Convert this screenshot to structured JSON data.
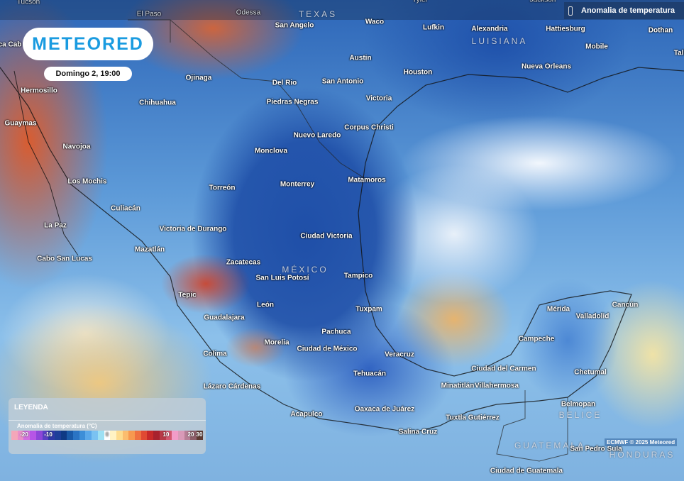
{
  "header": {
    "logo": "METEORED",
    "datetime": "Domingo 2, 19:00",
    "layer_title": "Anomalia de temperatura",
    "layer_icon": "thermometer-icon"
  },
  "legend": {
    "title": "LEYENDA",
    "subtitle": "Anomalia de temperatura (°C)",
    "ticks": [
      "-20",
      "-10",
      "0",
      "10",
      "20",
      "30"
    ],
    "colors": [
      "#f4a7b9",
      "#e98fc9",
      "#d36ee0",
      "#b655e6",
      "#8d46d8",
      "#5a3fc4",
      "#2e3aa6",
      "#1d3f99",
      "#0f3a85",
      "#1a5aa8",
      "#2a74c4",
      "#3d8ed8",
      "#5aa8ea",
      "#7ac2f2",
      "#9de0f4",
      "#ffffff",
      "#fff3c4",
      "#fddc8e",
      "#fbbd6e",
      "#f7994f",
      "#ef7140",
      "#e04a33",
      "#c72a2a",
      "#a8222e",
      "#b83a48",
      "#d25870",
      "#f29cc8",
      "#d99ab8",
      "#b77f96",
      "#8e5f6a",
      "#5e3a32"
    ]
  },
  "credit": "ECMWF © 2025 Meteored",
  "countries": [
    "TEXAS",
    "LUISIANA",
    "MÉXICO",
    "BELICE",
    "GUATEMALA",
    "HONDURAS"
  ],
  "cities": [
    "Tucson",
    "El Paso",
    "Odessa",
    "Tyler",
    "Jackson",
    "San Angelo",
    "Waco",
    "Lufkin",
    "Alexandria",
    "Hattiesburg",
    "Dothan",
    "Austin",
    "Houston",
    "Mobile",
    "Nueva Orleans",
    "Tall",
    "ca Cab",
    "Hermosillo",
    "Ojinaga",
    "Del Rio",
    "San Antonio",
    "Chihuahua",
    "Piedras Negras",
    "Victoria",
    "Guaymas",
    "Corpus Christi",
    "Navojoa",
    "Nuevo Laredo",
    "Monclova",
    "Los Mochis",
    "Torreón",
    "Monterrey",
    "Matamoros",
    "Culiacán",
    "La Paz",
    "Victoria de Durango",
    "Ciudad Victoria",
    "Cabo San Lucas",
    "Mazatlán",
    "Zacatecas",
    "San Luis Potosí",
    "Tampico",
    "Tepic",
    "León",
    "Tuxpam",
    "Guadalajara",
    "Mérida",
    "Valladolid",
    "Cancún",
    "Pachuca",
    "Campeche",
    "Colima",
    "Morelia",
    "Ciudad de México",
    "Veracruz",
    "Ciudad del Carmen",
    "Chetumal",
    "Tehuacán",
    "Lázaro Cárdenas",
    "Minatitlán",
    "Villahermosa",
    "Belmopan",
    "Acapulco",
    "Oaxaca de Juárez",
    "Tuxtla Gutiérrez",
    "Salina Cruz",
    "San Pedro Sula",
    "Ciudad de Guatemala"
  ]
}
